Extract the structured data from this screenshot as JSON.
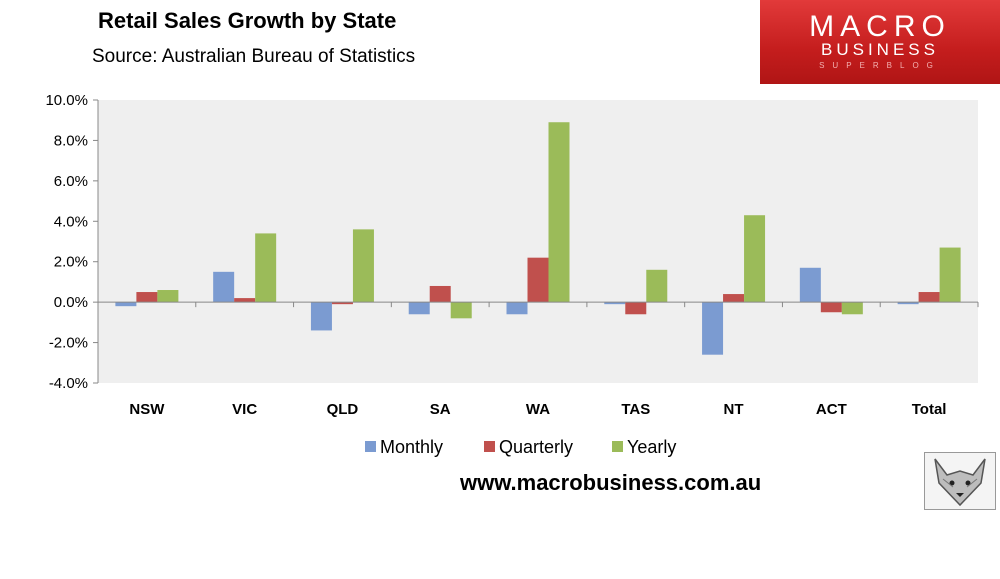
{
  "header": {
    "title": "Retail Sales Growth by State",
    "subtitle": "Source: Australian Bureau of Statistics"
  },
  "logo": {
    "line1": "MACRO",
    "line2": "BUSINESS",
    "line3": "SUPERBLOG"
  },
  "footer": {
    "website": "www.macrobusiness.com.au"
  },
  "colors": {
    "Monthly": "#7b9bd1",
    "Quarterly": "#c0504d",
    "Yearly": "#9bbb59"
  },
  "chart_data": {
    "type": "bar",
    "title": "Retail Sales Growth by State",
    "categories": [
      "NSW",
      "VIC",
      "QLD",
      "SA",
      "WA",
      "TAS",
      "NT",
      "ACT",
      "Total"
    ],
    "series": [
      {
        "name": "Monthly",
        "values": [
          -0.2,
          1.5,
          -1.4,
          -0.6,
          -0.6,
          -0.1,
          -2.6,
          1.7,
          -0.1
        ]
      },
      {
        "name": "Quarterly",
        "values": [
          0.5,
          0.2,
          -0.1,
          0.8,
          2.2,
          -0.6,
          0.4,
          -0.5,
          0.5
        ]
      },
      {
        "name": "Yearly",
        "values": [
          0.6,
          3.4,
          3.6,
          -0.8,
          8.9,
          1.6,
          4.3,
          -0.6,
          2.7
        ]
      }
    ],
    "ylim": [
      -4.0,
      10.0
    ],
    "yticks": [
      "10.0%",
      "8.0%",
      "6.0%",
      "4.0%",
      "2.0%",
      "0.0%",
      "-2.0%",
      "-4.0%"
    ],
    "ytick_values": [
      10,
      8,
      6,
      4,
      2,
      0,
      -2,
      -4
    ],
    "legend_position": "bottom",
    "grid": false
  }
}
